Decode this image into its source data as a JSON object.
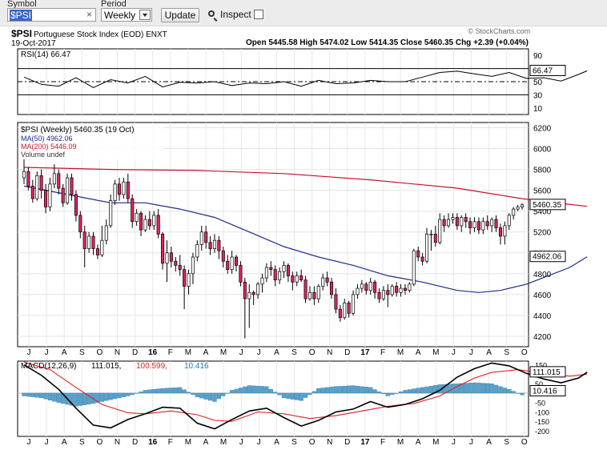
{
  "toolbar": {
    "symbol_label": "Symbol",
    "period_label": "Period",
    "symbol_value": "$PSI",
    "clear_glyph": "×",
    "period_value": "Weekly",
    "update_label": "Update",
    "inspect_label": "Inspect"
  },
  "header": {
    "ticker": "$PSI",
    "name": "Portuguese Stock Index (EOD)  ENXT",
    "date": "19-Oct-2017",
    "watermark": "© StockCharts.com",
    "ohlc": "Open 5445.58  High 5474.02  Low 5414.35  Close 5460.35  Chg +2.39 (+0.04%)"
  },
  "rsi_label": "RSI(14) 66.47",
  "price_legend": {
    "title": "$PSI (Weekly) 5460.35 (19 Oct)",
    "ma50": "MA(50) 4962.06",
    "ma200": "MA(200) 5446.09",
    "volume": "Volume undef"
  },
  "macd_legend": {
    "prefix": "MACD(12,26,9)",
    "v1": "111.015,",
    "v2": "100.599,",
    "v3": "10.416"
  },
  "tags": {
    "close": "5460.35",
    "ma50": "4962.06",
    "rsi": "66.47",
    "macd": "111.015",
    "hist": "10.416"
  },
  "colors": {
    "up": "#ffffff",
    "down": "#e0245e",
    "ma50": "#1f2a8a",
    "ma200": "#c4142c",
    "macd_signal": "#e02020",
    "macd_line": "#000000",
    "histogram": "#5aa0c8",
    "toolbar": "#ececec"
  },
  "chart_data": {
    "type": "candlestick",
    "period": "weekly",
    "x_month_labels": [
      "J",
      "J",
      "A",
      "S",
      "O",
      "N",
      "D",
      "16",
      "F",
      "M",
      "A",
      "M",
      "J",
      "J",
      "A",
      "S",
      "O",
      "N",
      "D",
      "17",
      "F",
      "M",
      "A",
      "M",
      "J",
      "J",
      "A",
      "S",
      "O"
    ],
    "price_axis": {
      "ticks": [
        4200,
        4400,
        4600,
        4800,
        5000,
        5200,
        5400,
        5600,
        5800,
        6000,
        6200
      ],
      "range": [
        4100,
        6250
      ]
    },
    "rsi_axis": {
      "ticks": [
        10,
        30,
        50,
        70,
        90
      ],
      "range": [
        0,
        100
      ],
      "guides": [
        30,
        50,
        70
      ]
    },
    "macd_axis": {
      "ticks": [
        150,
        100,
        50,
        -50,
        -100,
        -150,
        -200
      ],
      "range": [
        -230,
        170
      ]
    },
    "candles": [
      [
        5720,
        5780,
        5900,
        5660
      ],
      [
        5780,
        5640,
        5820,
        5600
      ],
      [
        5640,
        5520,
        5700,
        5480
      ],
      [
        5520,
        5740,
        5780,
        5500
      ],
      [
        5740,
        5600,
        5800,
        5520
      ],
      [
        5600,
        5440,
        5660,
        5380
      ],
      [
        5440,
        5660,
        5720,
        5400
      ],
      [
        5660,
        5760,
        5850,
        5620
      ],
      [
        5760,
        5620,
        5800,
        5560
      ],
      [
        5620,
        5480,
        5660,
        5440
      ],
      [
        5480,
        5720,
        5760,
        5460
      ],
      [
        5720,
        5560,
        5760,
        5500
      ],
      [
        5560,
        5360,
        5600,
        5300
      ],
      [
        5360,
        5200,
        5400,
        5140
      ],
      [
        5200,
        5040,
        5260,
        4860
      ],
      [
        5040,
        5160,
        5200,
        5000
      ],
      [
        5160,
        5040,
        5200,
        4980
      ],
      [
        5040,
        4980,
        5080,
        4940
      ],
      [
        4980,
        5120,
        5260,
        4960
      ],
      [
        5120,
        5260,
        5320,
        5080
      ],
      [
        5260,
        5500,
        5560,
        5240
      ],
      [
        5500,
        5660,
        5700,
        5460
      ],
      [
        5660,
        5560,
        5720,
        5500
      ],
      [
        5560,
        5680,
        5720,
        5520
      ],
      [
        5680,
        5520,
        5760,
        5480
      ],
      [
        5520,
        5300,
        5560,
        5240
      ],
      [
        5300,
        5380,
        5420,
        5260
      ],
      [
        5380,
        5220,
        5400,
        5160
      ],
      [
        5220,
        5320,
        5360,
        5200
      ],
      [
        5320,
        5260,
        5400,
        5220
      ],
      [
        5260,
        5360,
        5400,
        5220
      ],
      [
        5360,
        5180,
        5420,
        5140
      ],
      [
        5180,
        4900,
        5200,
        4840
      ],
      [
        4900,
        5000,
        5120,
        4720
      ],
      [
        5000,
        4920,
        5060,
        4860
      ],
      [
        4920,
        4880,
        4960,
        4820
      ],
      [
        4880,
        4840,
        4980,
        4780
      ],
      [
        4840,
        4680,
        4880,
        4460
      ],
      [
        4680,
        4800,
        4840,
        4600
      ],
      [
        4800,
        4960,
        5000,
        4700
      ],
      [
        4960,
        5080,
        5120,
        4920
      ],
      [
        5080,
        5200,
        5260,
        5020
      ],
      [
        5200,
        5100,
        5260,
        5040
      ],
      [
        5100,
        5040,
        5160,
        4980
      ],
      [
        5040,
        5120,
        5180,
        5000
      ],
      [
        5120,
        5020,
        5160,
        4940
      ],
      [
        5020,
        4920,
        5060,
        4860
      ],
      [
        4920,
        4840,
        4980,
        4800
      ],
      [
        4840,
        4960,
        5020,
        4800
      ],
      [
        4960,
        4880,
        4980,
        4820
      ],
      [
        4880,
        4720,
        4920,
        4680
      ],
      [
        4720,
        4560,
        4760,
        4180
      ],
      [
        4560,
        4620,
        4700,
        4280
      ],
      [
        4620,
        4600,
        4640,
        4500
      ],
      [
        4600,
        4700,
        4720,
        4560
      ],
      [
        4700,
        4760,
        4800,
        4620
      ],
      [
        4760,
        4860,
        4900,
        4720
      ],
      [
        4860,
        4840,
        4920,
        4780
      ],
      [
        4840,
        4740,
        4880,
        4680
      ],
      [
        4740,
        4820,
        4860,
        4700
      ],
      [
        4820,
        4880,
        4920,
        4760
      ],
      [
        4880,
        4780,
        4900,
        4720
      ],
      [
        4780,
        4720,
        4820,
        4640
      ],
      [
        4720,
        4780,
        4820,
        4680
      ],
      [
        4780,
        4740,
        4840,
        4720
      ],
      [
        4740,
        4560,
        4780,
        4520
      ],
      [
        4560,
        4620,
        4680,
        4540
      ],
      [
        4620,
        4560,
        4680,
        4500
      ],
      [
        4560,
        4680,
        4700,
        4520
      ],
      [
        4680,
        4760,
        4800,
        4640
      ],
      [
        4760,
        4720,
        4820,
        4680
      ],
      [
        4720,
        4600,
        4760,
        4560
      ],
      [
        4600,
        4460,
        4660,
        4420
      ],
      [
        4460,
        4380,
        4500,
        4340
      ],
      [
        4380,
        4520,
        4560,
        4360
      ],
      [
        4520,
        4420,
        4540,
        4380
      ],
      [
        4420,
        4600,
        4640,
        4400
      ],
      [
        4600,
        4660,
        4700,
        4560
      ],
      [
        4660,
        4700,
        4740,
        4620
      ],
      [
        4700,
        4640,
        4720,
        4600
      ],
      [
        4640,
        4720,
        4760,
        4600
      ],
      [
        4720,
        4620,
        4740,
        4560
      ],
      [
        4620,
        4560,
        4660,
        4520
      ],
      [
        4560,
        4640,
        4680,
        4540
      ],
      [
        4640,
        4600,
        4700,
        4480
      ],
      [
        4600,
        4680,
        4700,
        4580
      ],
      [
        4680,
        4620,
        4720,
        4580
      ],
      [
        4620,
        4660,
        4700,
        4580
      ],
      [
        4660,
        4640,
        4700,
        4600
      ],
      [
        4640,
        4700,
        4720,
        4620
      ],
      [
        4700,
        5020,
        5040,
        4680
      ],
      [
        5020,
        4960,
        5060,
        4920
      ],
      [
        4960,
        4920,
        5000,
        4880
      ],
      [
        4920,
        5180,
        5240,
        4900
      ],
      [
        5180,
        5180,
        5220,
        5020
      ],
      [
        5180,
        5100,
        5260,
        5060
      ],
      [
        5100,
        5320,
        5380,
        5080
      ],
      [
        5320,
        5260,
        5360,
        5200
      ],
      [
        5260,
        5320,
        5380,
        5240
      ],
      [
        5320,
        5340,
        5380,
        5280
      ],
      [
        5340,
        5260,
        5380,
        5220
      ],
      [
        5260,
        5340,
        5360,
        5200
      ],
      [
        5340,
        5300,
        5380,
        5240
      ],
      [
        5300,
        5240,
        5340,
        5180
      ],
      [
        5240,
        5300,
        5340,
        5200
      ],
      [
        5300,
        5220,
        5340,
        5180
      ],
      [
        5220,
        5300,
        5340,
        5180
      ],
      [
        5300,
        5260,
        5360,
        5220
      ],
      [
        5260,
        5320,
        5340,
        5200
      ],
      [
        5320,
        5240,
        5360,
        5200
      ],
      [
        5240,
        5160,
        5280,
        5080
      ],
      [
        5160,
        5260,
        5300,
        5080
      ],
      [
        5260,
        5360,
        5380,
        5220
      ],
      [
        5360,
        5420,
        5440,
        5320
      ],
      [
        5420,
        5440,
        5460,
        5400
      ],
      [
        5440,
        5460,
        5474,
        5414
      ]
    ],
    "ma50_points": [
      [
        0,
        5640
      ],
      [
        10,
        5560
      ],
      [
        20,
        5480
      ],
      [
        28,
        5480
      ],
      [
        36,
        5420
      ],
      [
        44,
        5340
      ],
      [
        52,
        5200
      ],
      [
        60,
        5060
      ],
      [
        68,
        4960
      ],
      [
        76,
        4880
      ],
      [
        84,
        4780
      ],
      [
        92,
        4720
      ],
      [
        100,
        4640
      ],
      [
        105,
        4620
      ],
      [
        110,
        4640
      ],
      [
        116,
        4700
      ],
      [
        121,
        4780
      ],
      [
        126,
        4860
      ],
      [
        130,
        4962
      ]
    ],
    "ma200_points": [
      [
        0,
        5820
      ],
      [
        20,
        5800
      ],
      [
        40,
        5790
      ],
      [
        60,
        5760
      ],
      [
        80,
        5700
      ],
      [
        100,
        5620
      ],
      [
        115,
        5520
      ],
      [
        125,
        5470
      ],
      [
        130,
        5446
      ]
    ],
    "rsi_points": [
      [
        0,
        57
      ],
      [
        4,
        46
      ],
      [
        8,
        43
      ],
      [
        12,
        56
      ],
      [
        16,
        41
      ],
      [
        20,
        53
      ],
      [
        24,
        48
      ],
      [
        28,
        58
      ],
      [
        32,
        42
      ],
      [
        36,
        49
      ],
      [
        40,
        48
      ],
      [
        44,
        50
      ],
      [
        48,
        44
      ],
      [
        52,
        48
      ],
      [
        56,
        47
      ],
      [
        60,
        50
      ],
      [
        64,
        43
      ],
      [
        68,
        52
      ],
      [
        72,
        47
      ],
      [
        76,
        48
      ],
      [
        80,
        52
      ],
      [
        84,
        50
      ],
      [
        88,
        50
      ],
      [
        92,
        57
      ],
      [
        96,
        64
      ],
      [
        100,
        66
      ],
      [
        104,
        62
      ],
      [
        108,
        58
      ],
      [
        112,
        64
      ],
      [
        116,
        55
      ],
      [
        120,
        56
      ],
      [
        124,
        51
      ],
      [
        128,
        61
      ],
      [
        130,
        66.47
      ]
    ],
    "macd_line_points": [
      [
        0,
        150
      ],
      [
        4,
        95
      ],
      [
        8,
        20
      ],
      [
        12,
        -80
      ],
      [
        16,
        -170
      ],
      [
        20,
        -185
      ],
      [
        24,
        -140
      ],
      [
        28,
        -110
      ],
      [
        32,
        -75
      ],
      [
        36,
        -80
      ],
      [
        40,
        -160
      ],
      [
        44,
        -190
      ],
      [
        48,
        -140
      ],
      [
        52,
        -95
      ],
      [
        56,
        -80
      ],
      [
        60,
        -130
      ],
      [
        64,
        -175
      ],
      [
        68,
        -145
      ],
      [
        72,
        -100
      ],
      [
        76,
        -85
      ],
      [
        80,
        -45
      ],
      [
        84,
        -75
      ],
      [
        88,
        -60
      ],
      [
        92,
        -30
      ],
      [
        96,
        15
      ],
      [
        100,
        85
      ],
      [
        104,
        130
      ],
      [
        108,
        160
      ],
      [
        112,
        145
      ],
      [
        116,
        105
      ],
      [
        120,
        75
      ],
      [
        124,
        55
      ],
      [
        128,
        80
      ],
      [
        130,
        111.015
      ]
    ],
    "macd_signal_points": [
      [
        0,
        165
      ],
      [
        6,
        125
      ],
      [
        12,
        30
      ],
      [
        18,
        -60
      ],
      [
        24,
        -105
      ],
      [
        28,
        -110
      ],
      [
        34,
        -95
      ],
      [
        40,
        -115
      ],
      [
        44,
        -145
      ],
      [
        48,
        -150
      ],
      [
        54,
        -100
      ],
      [
        60,
        -110
      ],
      [
        66,
        -135
      ],
      [
        72,
        -120
      ],
      [
        78,
        -95
      ],
      [
        84,
        -70
      ],
      [
        90,
        -55
      ],
      [
        96,
        -15
      ],
      [
        100,
        35
      ],
      [
        104,
        80
      ],
      [
        108,
        110
      ],
      [
        114,
        125
      ],
      [
        120,
        105
      ],
      [
        126,
        90
      ],
      [
        130,
        100.599
      ]
    ],
    "histogram_samples": [
      [
        0,
        -15
      ],
      [
        4,
        -25
      ],
      [
        8,
        -50
      ],
      [
        12,
        -70
      ],
      [
        16,
        -55
      ],
      [
        20,
        -35
      ],
      [
        24,
        -15
      ],
      [
        28,
        15
      ],
      [
        32,
        25
      ],
      [
        36,
        30
      ],
      [
        40,
        -20
      ],
      [
        44,
        -45
      ],
      [
        48,
        15
      ],
      [
        52,
        40
      ],
      [
        56,
        35
      ],
      [
        60,
        -25
      ],
      [
        64,
        -40
      ],
      [
        68,
        25
      ],
      [
        72,
        35
      ],
      [
        76,
        40
      ],
      [
        80,
        30
      ],
      [
        84,
        -15
      ],
      [
        88,
        15
      ],
      [
        92,
        30
      ],
      [
        96,
        45
      ],
      [
        100,
        50
      ],
      [
        104,
        55
      ],
      [
        108,
        50
      ],
      [
        112,
        20
      ],
      [
        116,
        -20
      ],
      [
        120,
        -30
      ],
      [
        124,
        -35
      ],
      [
        128,
        -10
      ],
      [
        130,
        10.416
      ]
    ]
  }
}
